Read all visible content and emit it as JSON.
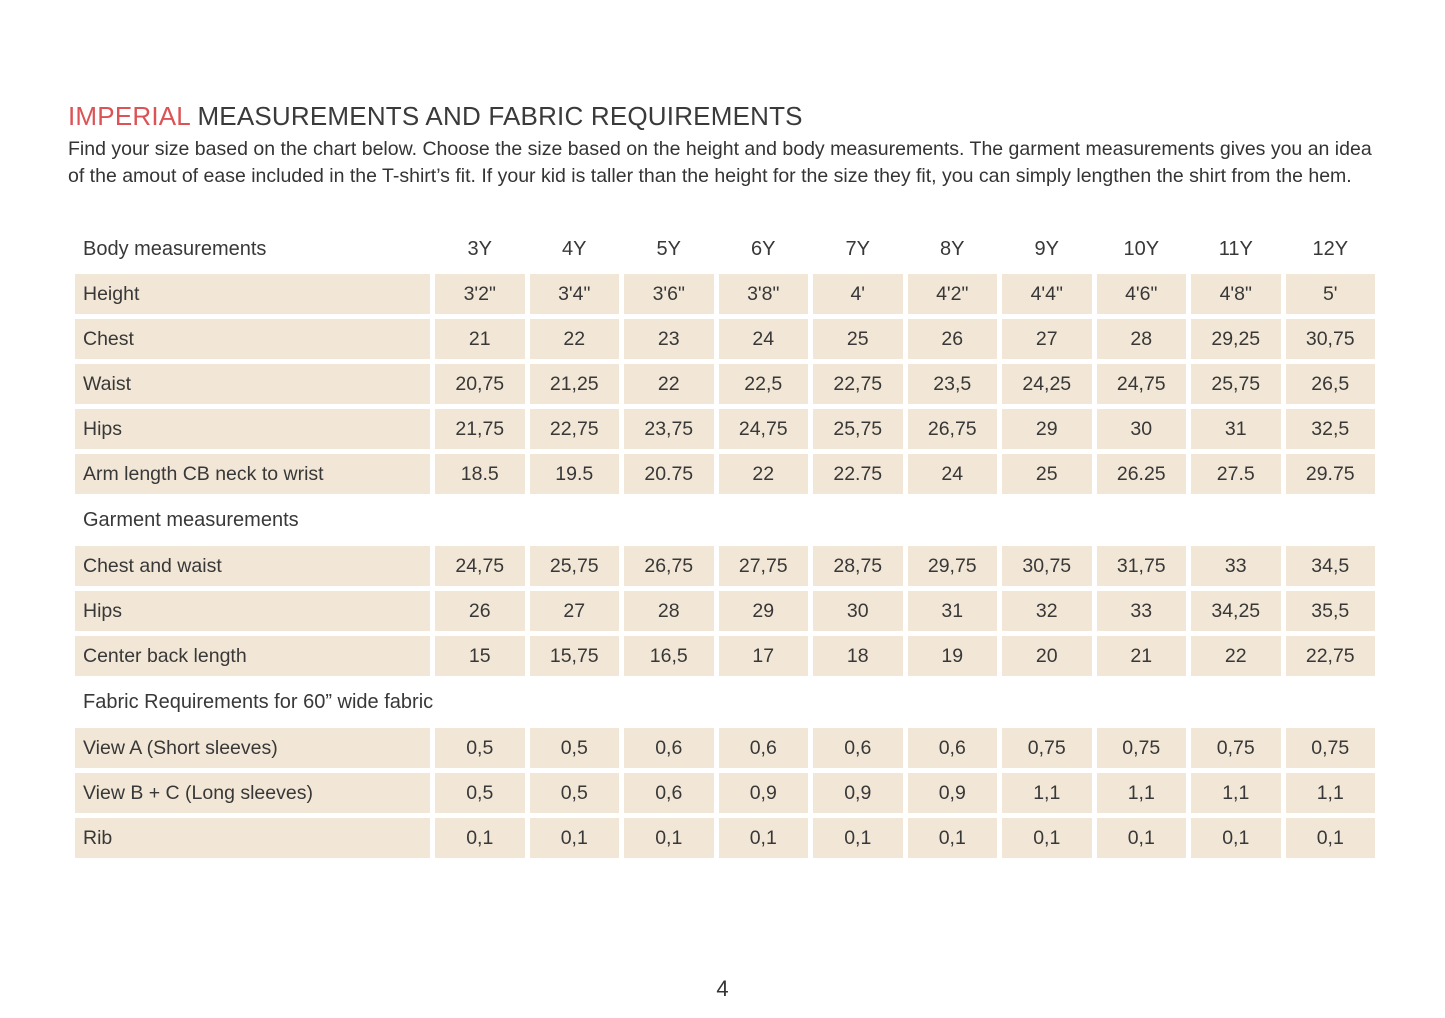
{
  "colors": {
    "accent_red": "#dc5355",
    "row_bg": "#f2e7d6",
    "text": "#3a3a3a"
  },
  "title": {
    "accent": "IMPERIAL",
    "rest": "MEASUREMENTS AND FABRIC REQUIREMENTS"
  },
  "intro": "Find your size based on the chart below. Choose the size based on the height and body measurements. The garment measurements gives you an idea of the amout of ease included in the T-shirt’s fit. If your kid is taller than the height for the size they fit, you can simply lengthen the shirt from the hem.",
  "page_number": "4",
  "table": {
    "sizes": [
      "3Y",
      "4Y",
      "5Y",
      "6Y",
      "7Y",
      "8Y",
      "9Y",
      "10Y",
      "11Y",
      "12Y"
    ],
    "sections": [
      {
        "header": "Body measurements",
        "rows": [
          {
            "label": "Height",
            "values": [
              "3'2\"",
              "3'4\"",
              "3'6\"",
              "3'8\"",
              "4'",
              "4'2\"",
              "4'4\"",
              "4'6\"",
              "4'8\"",
              "5'"
            ]
          },
          {
            "label": "Chest",
            "values": [
              "21",
              "22",
              "23",
              "24",
              "25",
              "26",
              "27",
              "28",
              "29,25",
              "30,75"
            ]
          },
          {
            "label": "Waist",
            "values": [
              "20,75",
              "21,25",
              "22",
              "22,5",
              "22,75",
              "23,5",
              "24,25",
              "24,75",
              "25,75",
              "26,5"
            ]
          },
          {
            "label": "Hips",
            "values": [
              "21,75",
              "22,75",
              "23,75",
              "24,75",
              "25,75",
              "26,75",
              "29",
              "30",
              "31",
              "32,5"
            ]
          },
          {
            "label": "Arm length CB neck to wrist",
            "values": [
              "18.5",
              "19.5",
              "20.75",
              "22",
              "22.75",
              "24",
              "25",
              "26.25",
              "27.5",
              "29.75"
            ]
          }
        ]
      },
      {
        "header": "Garment measurements",
        "rows": [
          {
            "label": "Chest and waist",
            "values": [
              "24,75",
              "25,75",
              "26,75",
              "27,75",
              "28,75",
              "29,75",
              "30,75",
              "31,75",
              "33",
              "34,5"
            ]
          },
          {
            "label": "Hips",
            "values": [
              "26",
              "27",
              "28",
              "29",
              "30",
              "31",
              "32",
              "33",
              "34,25",
              "35,5"
            ]
          },
          {
            "label": "Center back length",
            "values": [
              "15",
              "15,75",
              "16,5",
              "17",
              "18",
              "19",
              "20",
              "21",
              "22",
              "22,75"
            ]
          }
        ]
      },
      {
        "header": "Fabric Requirements for  60” wide fabric",
        "rows": [
          {
            "label": "View A (Short sleeves)",
            "values": [
              "0,5",
              "0,5",
              "0,6",
              "0,6",
              "0,6",
              "0,6",
              "0,75",
              "0,75",
              "0,75",
              "0,75"
            ]
          },
          {
            "label": "View B + C (Long sleeves)",
            "values": [
              "0,5",
              "0,5",
              "0,6",
              "0,9",
              "0,9",
              "0,9",
              "1,1",
              "1,1",
              "1,1",
              "1,1"
            ]
          },
          {
            "label": "Rib",
            "values": [
              "0,1",
              "0,1",
              "0,1",
              "0,1",
              "0,1",
              "0,1",
              "0,1",
              "0,1",
              "0,1",
              "0,1"
            ]
          }
        ]
      }
    ]
  }
}
